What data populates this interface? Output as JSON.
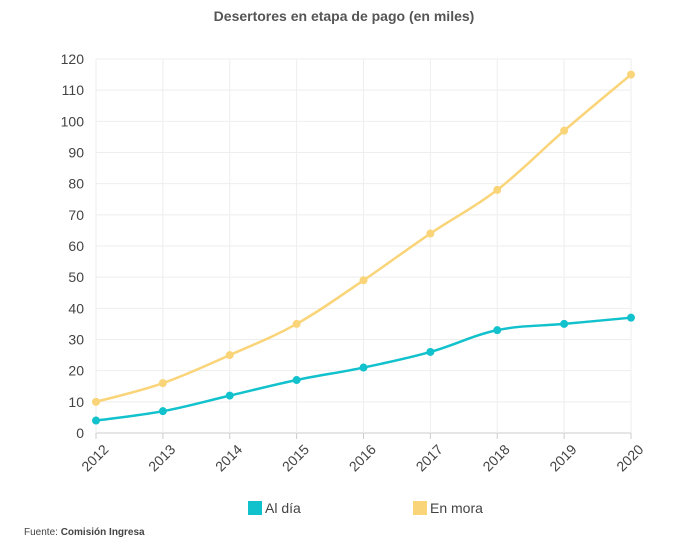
{
  "chart_data": {
    "type": "line",
    "title": "Desertores en etapa de pago (en miles)",
    "categories": [
      "2012",
      "2013",
      "2014",
      "2015",
      "2016",
      "2017",
      "2018",
      "2019",
      "2020"
    ],
    "ylim": [
      0,
      120
    ],
    "yticks": [
      0,
      10,
      20,
      30,
      40,
      50,
      60,
      70,
      80,
      90,
      100,
      110,
      120
    ],
    "grid": true,
    "legend_position": "bottom",
    "series": [
      {
        "name": "Al día",
        "color": "#11C1CC",
        "values": [
          4,
          7,
          12,
          17,
          21,
          26,
          33,
          35,
          37
        ]
      },
      {
        "name": "En mora",
        "color": "#FAD478",
        "values": [
          10,
          16,
          25,
          35,
          49,
          64,
          78,
          97,
          115
        ]
      }
    ]
  },
  "source": {
    "prefix": "Fuente: ",
    "name": "Comisión Ingresa"
  }
}
